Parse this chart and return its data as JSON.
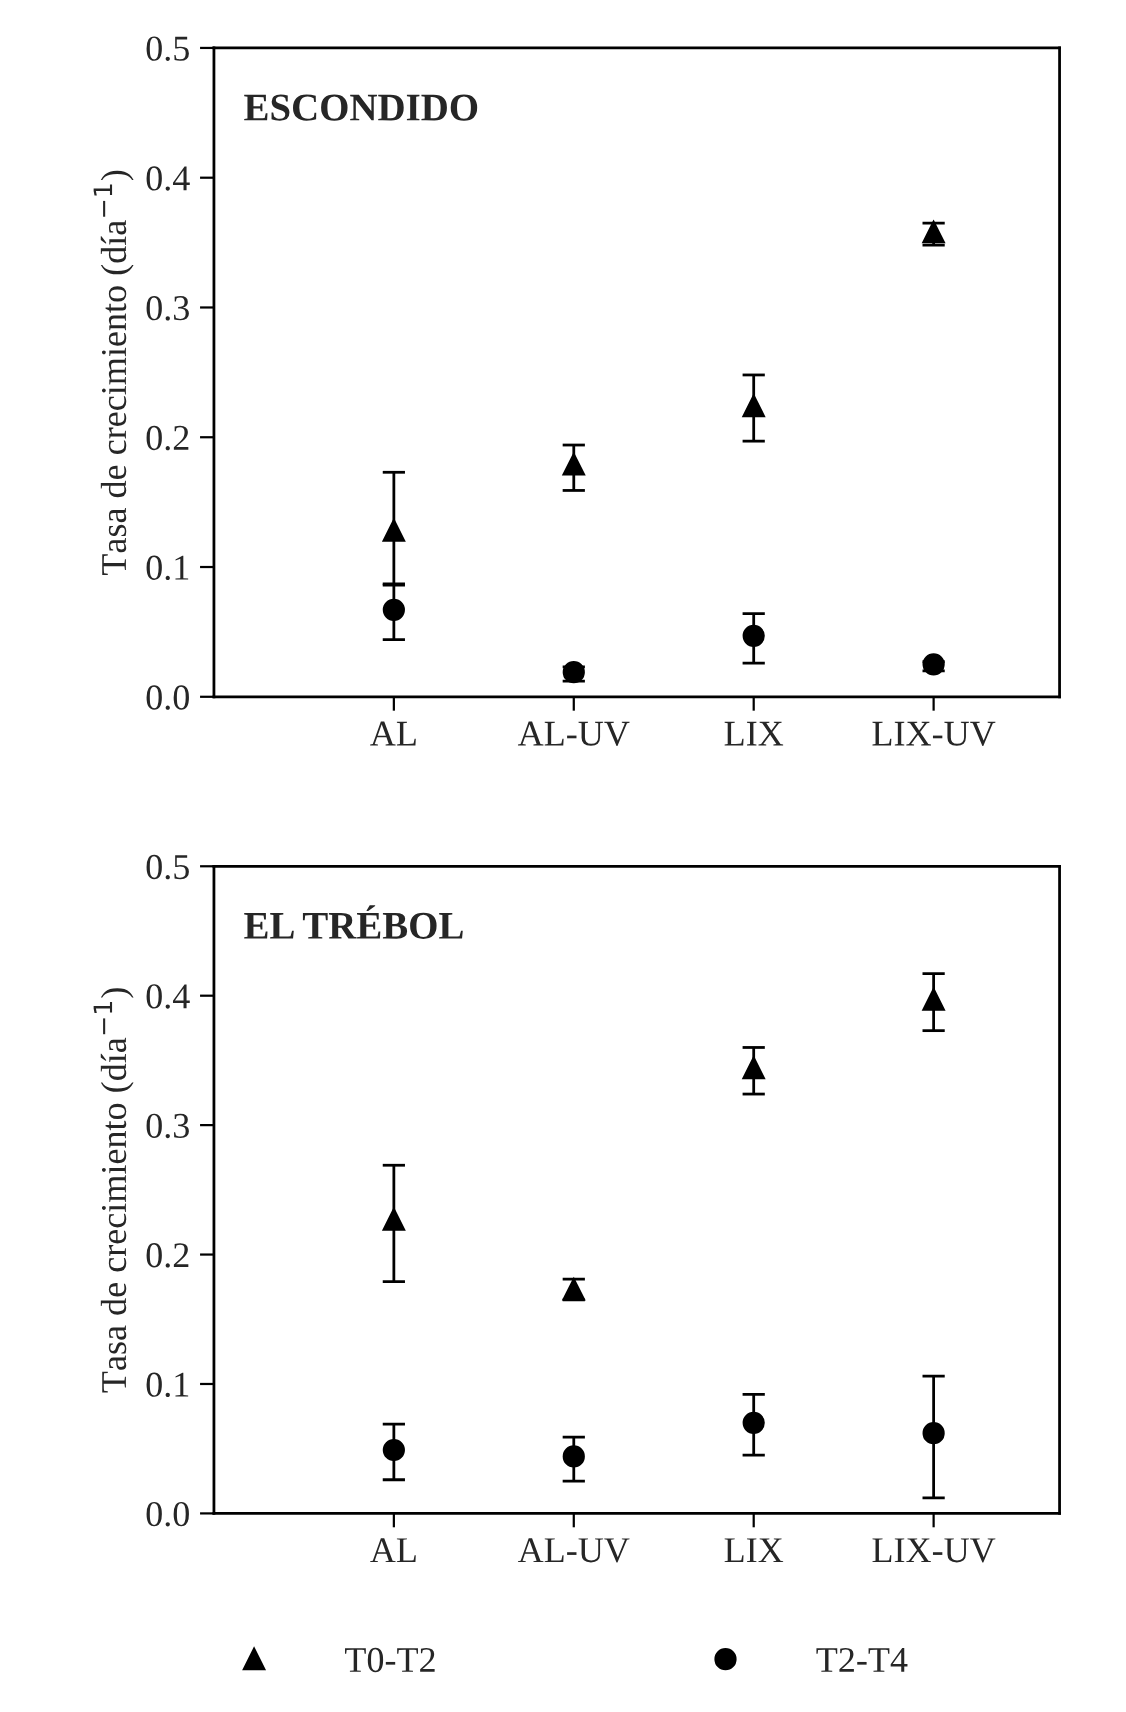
{
  "chart_data": [
    {
      "type": "scatter",
      "title": "ESCONDIDO",
      "ylabel": "Tasa de crecimiento (día$^{−1}$)",
      "categories": [
        "AL",
        "AL-UV",
        "LIX",
        "LIX-UV"
      ],
      "ylim": [
        0,
        0.5
      ],
      "yticks": [
        {
          "value": 0,
          "label": "0.0"
        },
        0.1,
        0.2,
        0.3,
        0.4,
        0.5
      ],
      "grid": false,
      "series": [
        {
          "color": "#000000",
          "marker": "triangle",
          "values": [
            0.128,
            0.179,
            0.224,
            0.358
          ],
          "errors": [
            [
              0.087,
              0.173
            ],
            [
              0.159,
              0.194
            ],
            [
              0.197,
              0.248
            ],
            [
              0.348,
              0.365
            ]
          ]
        },
        {
          "color": "#000000",
          "marker": "circle",
          "values": [
            0.067,
            0.019,
            0.047,
            0.025
          ],
          "errors": [
            [
              0.044,
              0.086
            ],
            [
              0.012,
              0.023
            ],
            [
              0.026,
              0.064
            ],
            [
              0.02,
              0.027
            ]
          ]
        }
      ]
    },
    {
      "type": "scatter",
      "title": "EL TRÉBOL",
      "ylabel": "Tasa de crecimiento (día$^{−1}$)",
      "categories": [
        "AL",
        "AL-UV",
        "LIX",
        "LIX-UV"
      ],
      "ylim": [
        0,
        0.5
      ],
      "yticks": [
        {
          "value": 0,
          "label": "0.0"
        },
        0.1,
        0.2,
        0.3,
        0.4,
        0.5
      ],
      "grid": false,
      "legend": "bottom",
      "series": [
        {
          "name": "T0-T2",
          "color": "#000000",
          "marker": "triangle",
          "values": [
            0.227,
            0.173,
            0.344,
            0.397
          ],
          "errors": [
            [
              0.179,
              0.269
            ],
            [
              0.165,
              0.181
            ],
            [
              0.324,
              0.36
            ],
            [
              0.373,
              0.417
            ]
          ]
        },
        {
          "name": "T2-T4",
          "color": "#000000",
          "marker": "circle",
          "values": [
            0.049,
            0.044,
            0.07,
            0.062
          ],
          "errors": [
            [
              0.026,
              0.069
            ],
            [
              0.025,
              0.059
            ],
            [
              0.045,
              0.092
            ],
            [
              0.012,
              0.106
            ]
          ]
        }
      ]
    }
  ]
}
